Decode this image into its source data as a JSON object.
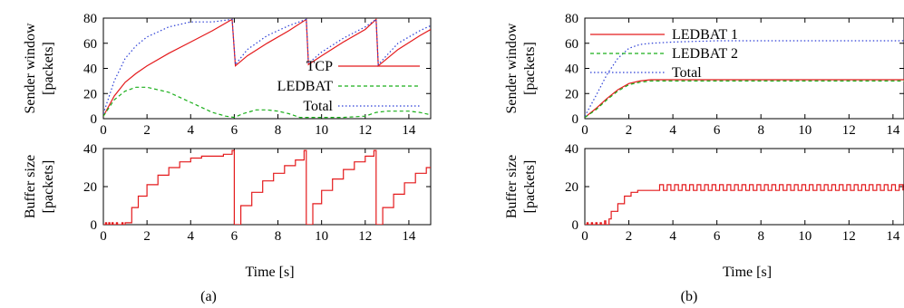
{
  "chart_data": [
    {
      "id": "a_top",
      "type": "line",
      "ylabel": [
        "Sender window",
        "[packets]"
      ],
      "xlabel": "",
      "xlim": [
        0,
        15
      ],
      "ylim": [
        0,
        80
      ],
      "xticks": [
        0,
        2,
        4,
        6,
        8,
        10,
        12,
        14
      ],
      "yticks": [
        0,
        20,
        40,
        60,
        80
      ],
      "show_xticklabels": true,
      "legend": "bottom-right",
      "series": [
        {
          "name": "TCP",
          "color": "#e41a1c",
          "dash": "solid",
          "x": [
            0,
            0.5,
            1,
            1.5,
            2,
            3,
            4,
            5,
            5.9,
            6.05,
            6.6,
            7.5,
            8.5,
            9.3,
            9.4,
            10,
            11,
            12,
            12.5,
            12.6,
            13.5,
            14.5,
            15
          ],
          "y": [
            2,
            18,
            29,
            36,
            42,
            52,
            61,
            70,
            79,
            42,
            50,
            60,
            70,
            79,
            43,
            50,
            61,
            71,
            79,
            42,
            55,
            66,
            71
          ]
        },
        {
          "name": "LEDBAT",
          "color": "#1aaf1a",
          "dash": "4,3",
          "x": [
            0,
            0.5,
            1,
            1.5,
            2,
            3,
            4,
            5,
            5.6,
            6,
            6.4,
            7,
            7.5,
            8,
            8.5,
            9,
            9.5,
            10,
            11,
            12,
            12.5,
            13,
            13.5,
            14,
            14.5,
            15
          ],
          "y": [
            2,
            15,
            22,
            25,
            25,
            21,
            13,
            5,
            2,
            1,
            4,
            7,
            7,
            6,
            4,
            1,
            1,
            1,
            1,
            2,
            5,
            6,
            6,
            6,
            5,
            3
          ]
        },
        {
          "name": "Total",
          "color": "#2c3fd6",
          "dash": "1.5,2.5",
          "x": [
            0,
            0.5,
            1,
            1.5,
            2,
            3,
            4,
            5,
            5.9,
            6.05,
            6.6,
            7.5,
            8.5,
            9.3,
            9.4,
            10,
            11,
            12,
            12.5,
            12.6,
            13.5,
            14.5,
            15
          ],
          "y": [
            4,
            30,
            48,
            58,
            65,
            73,
            77,
            77,
            79,
            43,
            55,
            66,
            74,
            79,
            44,
            53,
            64,
            73,
            79,
            43,
            60,
            70,
            74
          ]
        }
      ]
    },
    {
      "id": "a_bottom",
      "type": "line",
      "ylabel": [
        "Buffer size",
        "[packets]"
      ],
      "xlabel": "Time [s]",
      "xlim": [
        0,
        15
      ],
      "ylim": [
        0,
        40
      ],
      "xticks": [
        0,
        2,
        4,
        6,
        8,
        10,
        12,
        14
      ],
      "yticks": [
        0,
        20,
        40
      ],
      "show_xticklabels": true,
      "legend": "none",
      "series": [
        {
          "name": "",
          "color": "#e41a1c",
          "dash": "solid",
          "step": true,
          "x": [
            0,
            0.1,
            0.15,
            0.25,
            0.3,
            0.4,
            0.45,
            0.6,
            0.65,
            0.85,
            0.9,
            1.0,
            1.3,
            1.6,
            2,
            2.5,
            3,
            3.5,
            4,
            4.5,
            5,
            5.5,
            5.9,
            6.0,
            6.3,
            6.8,
            7.3,
            7.8,
            8.3,
            8.8,
            9.2,
            9.3,
            9.6,
            10,
            10.5,
            11,
            11.5,
            12,
            12.4,
            12.5,
            12.8,
            13.3,
            13.8,
            14.3,
            14.8,
            15
          ],
          "y": [
            0,
            1,
            0,
            1,
            0,
            1,
            0,
            1,
            0,
            1,
            0,
            1,
            9,
            15,
            21,
            26,
            30,
            33,
            35,
            36,
            36,
            37,
            39,
            0,
            10,
            17,
            23,
            27,
            31,
            34,
            39,
            0,
            11,
            18,
            24,
            29,
            33,
            36,
            39,
            0,
            9,
            16,
            22,
            27,
            30,
            30
          ]
        }
      ]
    },
    {
      "id": "b_top",
      "type": "line",
      "ylabel": [
        "Sender window",
        "[packets]"
      ],
      "xlabel": "",
      "xlim": [
        0,
        14.5
      ],
      "ylim": [
        0,
        80
      ],
      "xticks": [
        0,
        2,
        4,
        6,
        8,
        10,
        12,
        14
      ],
      "yticks": [
        0,
        20,
        40,
        60,
        80
      ],
      "show_xticklabels": true,
      "legend": "top-left",
      "series": [
        {
          "name": "LEDBAT 1",
          "color": "#e41a1c",
          "dash": "solid",
          "x": [
            0,
            0.5,
            1,
            1.5,
            2,
            2.5,
            3,
            4,
            6,
            8,
            10,
            12,
            14.5
          ],
          "y": [
            1,
            8,
            16,
            23,
            28,
            30,
            31,
            31,
            31,
            31,
            31,
            31,
            31
          ]
        },
        {
          "name": "LEDBAT 2",
          "color": "#1aaf1a",
          "dash": "4,3",
          "x": [
            0,
            0.5,
            1,
            1.5,
            2,
            2.5,
            3,
            4,
            6,
            8,
            10,
            12,
            14.5
          ],
          "y": [
            1,
            7,
            15,
            22,
            27,
            29,
            30,
            30,
            30,
            30,
            30,
            30,
            30
          ]
        },
        {
          "name": "Total",
          "color": "#2c3fd6",
          "dash": "1.5,2.5",
          "x": [
            0,
            0.5,
            1,
            1.5,
            2,
            2.5,
            3,
            4,
            6,
            8,
            10,
            12,
            14.5
          ],
          "y": [
            2,
            18,
            35,
            48,
            56,
            59,
            60,
            61,
            62,
            62,
            62,
            62,
            62
          ]
        }
      ]
    },
    {
      "id": "b_bottom",
      "type": "line",
      "ylabel": [
        "Buffer size",
        "[packets]"
      ],
      "xlabel": "Time [s]",
      "xlim": [
        0,
        14.5
      ],
      "ylim": [
        0,
        40
      ],
      "xticks": [
        0,
        2,
        4,
        6,
        8,
        10,
        12,
        14
      ],
      "yticks": [
        0,
        20,
        40
      ],
      "show_xticklabels": true,
      "legend": "none",
      "series": [
        {
          "name": "",
          "color": "#e41a1c",
          "dash": "solid",
          "step": true,
          "x": [
            0,
            0.1,
            0.15,
            0.3,
            0.35,
            0.5,
            0.55,
            0.7,
            0.75,
            0.9,
            0.95,
            1.1,
            1.2,
            1.5,
            1.8,
            2.1,
            2.4,
            3.0,
            3.4,
            15
          ],
          "y": [
            0,
            1,
            0,
            1,
            0,
            1,
            0,
            1,
            0,
            2,
            0,
            3,
            7,
            11,
            15,
            17,
            18,
            18,
            20,
            20
          ],
          "oscillate_from": 3.4,
          "oscillate_low": 18,
          "oscillate_high": 21,
          "oscillate_period": 0.34
        }
      ]
    }
  ],
  "captions": {
    "a": "(a)",
    "b": "(b)"
  }
}
